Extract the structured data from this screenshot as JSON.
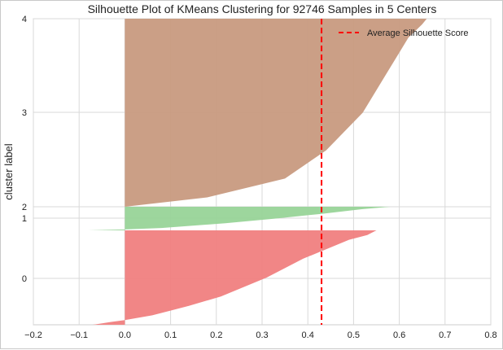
{
  "chart_data": {
    "type": "area",
    "title": "Silhouette Plot of KMeans Clustering for 92746 Samples in 5 Centers",
    "xlabel": "",
    "ylabel": "cluster label",
    "xlim": [
      -0.2,
      0.8
    ],
    "xticks": [
      "−0.2",
      "−0.1",
      "0.0",
      "0.1",
      "0.2",
      "0.3",
      "0.4",
      "0.5",
      "0.6",
      "0.7",
      "0.8"
    ],
    "yticks": [
      "0",
      "1",
      "2",
      "3",
      "4"
    ],
    "grid": true,
    "legend_position": "top-right",
    "average_silhouette_score": 0.43,
    "average_label": "Average Silhouette Score",
    "clusters": [
      {
        "label": "0",
        "color": "#f08080",
        "profile": [
          [
            0,
            0.55
          ],
          [
            0.05,
            0.53
          ],
          [
            0.1,
            0.49
          ],
          [
            0.2,
            0.44
          ],
          [
            0.3,
            0.39
          ],
          [
            0.4,
            0.35
          ],
          [
            0.5,
            0.31
          ],
          [
            0.6,
            0.26
          ],
          [
            0.7,
            0.21
          ],
          [
            0.8,
            0.14
          ],
          [
            0.9,
            0.06
          ],
          [
            0.95,
            0.0
          ],
          [
            0.97,
            -0.03
          ],
          [
            1.0,
            -0.07
          ]
        ]
      },
      {
        "label": "1",
        "color": "#98d498",
        "profile": [
          [
            0,
            0.58
          ],
          [
            0.1,
            0.52
          ],
          [
            0.3,
            0.43
          ],
          [
            0.5,
            0.33
          ],
          [
            0.7,
            0.22
          ],
          [
            0.9,
            0.08
          ],
          [
            0.96,
            0.0
          ],
          [
            1.0,
            -0.08
          ]
        ]
      },
      {
        "label": "2",
        "color": "#c89a80",
        "profile": [
          [
            0,
            0.66
          ],
          [
            0.03,
            0.65
          ],
          [
            0.1,
            0.62
          ],
          [
            0.18,
            0.6
          ],
          [
            0.3,
            0.57
          ],
          [
            0.5,
            0.52
          ],
          [
            0.7,
            0.44
          ],
          [
            0.85,
            0.35
          ],
          [
            0.95,
            0.18
          ],
          [
            1.0,
            0.0
          ]
        ]
      }
    ]
  }
}
